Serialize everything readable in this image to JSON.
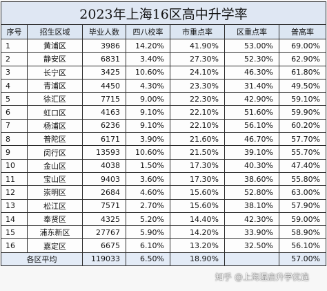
{
  "title": "2023年上海16区高中升学率",
  "headers": [
    "序号",
    "招生区域",
    "毕业人数",
    "四八校率",
    "市重点率",
    "区重点率",
    "普高率"
  ],
  "rows": [
    {
      "no": "1",
      "area": "黄浦区",
      "grads": "3986",
      "r48": "14.20%",
      "city": "41.90%",
      "district": "53.00%",
      "general": "69.00%"
    },
    {
      "no": "2",
      "area": "静安区",
      "grads": "6831",
      "r48": "3.40%",
      "city": "27.30%",
      "district": "52.30%",
      "general": "62.90%"
    },
    {
      "no": "3",
      "area": "长宁区",
      "grads": "3425",
      "r48": "10.60%",
      "city": "24.10%",
      "district": "46.30%",
      "general": "61.80%"
    },
    {
      "no": "4",
      "area": "青浦区",
      "grads": "4450",
      "r48": "4.30%",
      "city": "23.30%",
      "district": "31.40%",
      "general": "49.50%"
    },
    {
      "no": "5",
      "area": "徐汇区",
      "grads": "7715",
      "r48": "9.00%",
      "city": "22.30%",
      "district": "42.90%",
      "general": "59.10%"
    },
    {
      "no": "6",
      "area": "虹口区",
      "grads": "4163",
      "r48": "9.10%",
      "city": "22.10%",
      "district": "51.60%",
      "general": "59.90%"
    },
    {
      "no": "7",
      "area": "杨浦区",
      "grads": "6236",
      "r48": "9.10%",
      "city": "22.10%",
      "district": "56.10%",
      "general": "60.20%"
    },
    {
      "no": "8",
      "area": "普陀区",
      "grads": "6171",
      "r48": "3.90%",
      "city": "21.60%",
      "district": "46.70%",
      "general": "57.70%"
    },
    {
      "no": "9",
      "area": "闵行区",
      "grads": "13593",
      "r48": "10.60%",
      "city": "21.50%",
      "district": "39.10%",
      "general": "55.70%"
    },
    {
      "no": "10",
      "area": "金山区",
      "grads": "4038",
      "r48": "1.50%",
      "city": "17.30%",
      "district": "40.30%",
      "general": "47.40%"
    },
    {
      "no": "11",
      "area": "宝山区",
      "grads": "9403",
      "r48": "3.60%",
      "city": "17.30%",
      "district": "38.60%",
      "general": "55.80%"
    },
    {
      "no": "12",
      "area": "崇明区",
      "grads": "2684",
      "r48": "4.60%",
      "city": "15.60%",
      "district": "52.80%",
      "general": "63.00%"
    },
    {
      "no": "13",
      "area": "松江区",
      "grads": "7571",
      "r48": "2.70%",
      "city": "15.60%",
      "district": "38.10%",
      "general": "57.90%"
    },
    {
      "no": "14",
      "area": "奉贤区",
      "grads": "4325",
      "r48": "5.20%",
      "city": "14.40%",
      "district": "42.30%",
      "general": "59.00%"
    },
    {
      "no": "15",
      "area": "浦东新区",
      "grads": "27767",
      "r48": "5.90%",
      "city": "14.20%",
      "district": "33.90%",
      "general": "58.90%"
    },
    {
      "no": "16",
      "area": "嘉定区",
      "grads": "6675",
      "r48": "6.10%",
      "city": "13.20%",
      "district": "32.50%",
      "general": "56.10%"
    }
  ],
  "average": {
    "label": "各区平均",
    "grads": "119033",
    "r48": "6.50%",
    "city": "18.90%",
    "district": "",
    "general": "57.00%"
  },
  "watermark": "知乎 @上海湿启升学优选"
}
